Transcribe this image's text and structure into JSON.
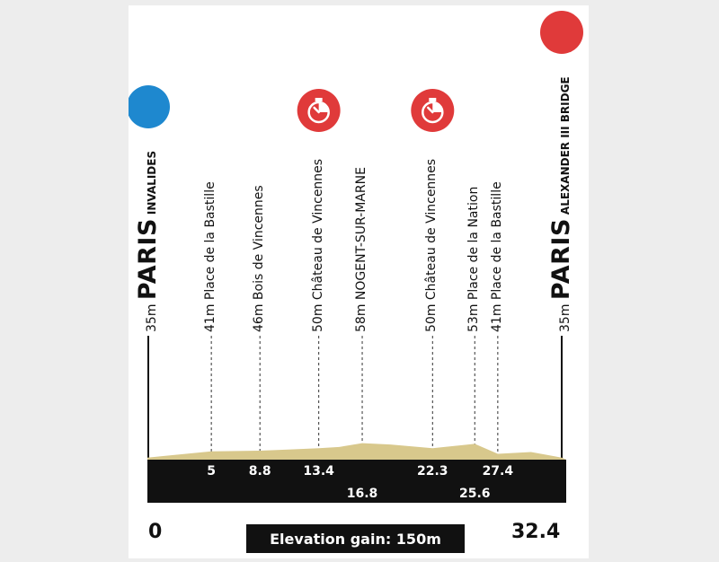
{
  "distance": {
    "start": "0",
    "end": "32.4"
  },
  "elevation_gain": "Elevation gain: 150m",
  "colors": {
    "start_marker": "#1e88cf",
    "finish_marker": "#e03a3a",
    "sprint_marker": "#e03a3a",
    "terrain": "#d8c88c",
    "road": "#111111"
  },
  "start": {
    "altitude": "35m",
    "city": "PARIS",
    "place": "INVALIDES"
  },
  "finish": {
    "altitude": "35m",
    "city": "PARIS",
    "place": "ALEXANDER III BRIDGE"
  },
  "waypoints": [
    {
      "altitude": "41m",
      "name": "Place de la Bastille",
      "km": "5",
      "km_row": "top",
      "sprint": false
    },
    {
      "altitude": "46m",
      "name": "Bois de Vincennes",
      "km": "8.8",
      "km_row": "top",
      "sprint": false
    },
    {
      "altitude": "50m",
      "name": "Château de Vincennes",
      "km": "13.4",
      "km_row": "top",
      "sprint": true
    },
    {
      "altitude": "58m",
      "name": "NOGENT-SUR-MARNE",
      "km": "16.8",
      "km_row": "bottom",
      "sprint": false
    },
    {
      "altitude": "50m",
      "name": "Château de Vincennes",
      "km": "22.3",
      "km_row": "top",
      "sprint": true
    },
    {
      "altitude": "53m",
      "name": "Place de la Nation",
      "km": "25.6",
      "km_row": "bottom",
      "sprint": false
    },
    {
      "altitude": "41m",
      "name": "Place de la Bastille",
      "km": "27.4",
      "km_row": "top",
      "sprint": false
    }
  ],
  "elevation_profile": {
    "km": [
      0,
      5,
      8.8,
      11,
      13.4,
      15,
      16.8,
      19,
      22.3,
      25.6,
      27.4,
      30,
      32.4
    ],
    "altitude": [
      35,
      41,
      46,
      44,
      50,
      48,
      58,
      52,
      50,
      53,
      41,
      40,
      35
    ]
  }
}
